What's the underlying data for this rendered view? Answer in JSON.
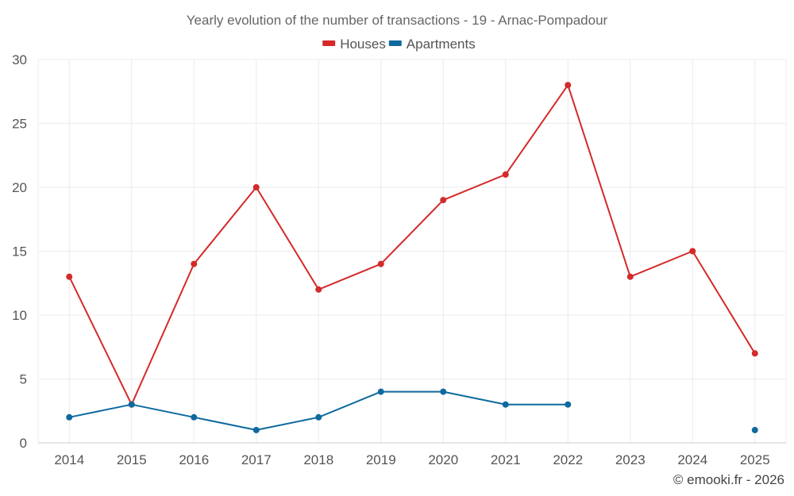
{
  "chart_data": {
    "type": "line",
    "title": "Yearly evolution of the number of transactions - 19 - Arnac-Pompadour",
    "xlabel": "",
    "ylabel": "",
    "categories": [
      "2014",
      "2015",
      "2016",
      "2017",
      "2018",
      "2019",
      "2020",
      "2021",
      "2022",
      "2023",
      "2024",
      "2025"
    ],
    "ylim": [
      0,
      30
    ],
    "yticks": [
      0,
      5,
      10,
      15,
      20,
      25,
      30
    ],
    "grid": true,
    "legend_position": "top-center",
    "series": [
      {
        "name": "Houses",
        "color": "#d42a2a",
        "values": [
          13,
          3,
          14,
          20,
          12,
          14,
          19,
          21,
          28,
          13,
          15,
          7
        ]
      },
      {
        "name": "Apartments",
        "color": "#0e6a9e",
        "values": [
          2,
          3,
          2,
          1,
          2,
          4,
          4,
          3,
          3,
          null,
          null,
          1
        ]
      }
    ]
  },
  "credit": "© emooki.fr - 2026"
}
